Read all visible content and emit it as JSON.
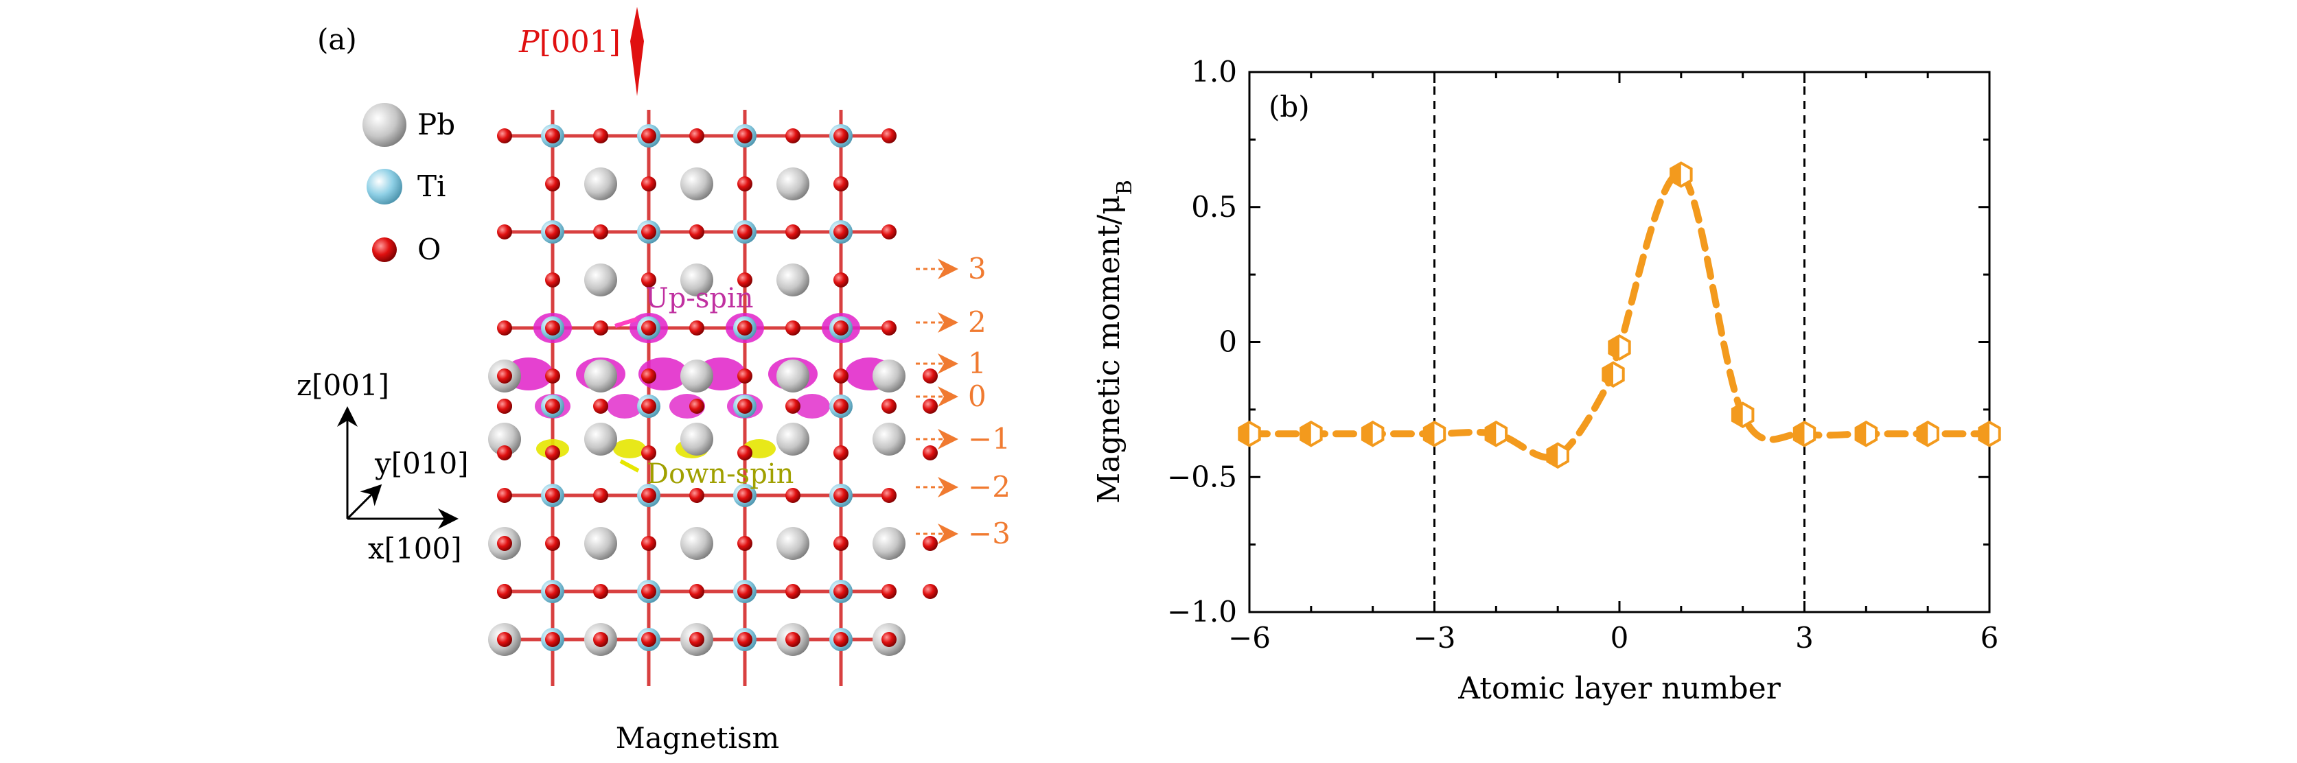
{
  "panel_a": {
    "label": "(a)",
    "polarization": {
      "symbol": "P",
      "direction": "[001]"
    },
    "legend": [
      "Pb",
      "Ti",
      "O"
    ],
    "axes": {
      "z": "z[001]",
      "y": "y[010]",
      "x": "x[100]"
    },
    "spin_labels": {
      "up": "Up-spin",
      "down": "Down-spin"
    },
    "layer_labels": [
      "3",
      "2",
      "1",
      "0",
      "−1",
      "−2",
      "−3"
    ],
    "caption": "Magnetism",
    "colors": {
      "pb": "#c8c8c8",
      "ti": "#8fd0e6",
      "o": "#e01010",
      "bond": "#d84040",
      "up_spin": "#e020c8",
      "down_spin": "#e6e600",
      "arrow": "#f07a30",
      "p_arrow": "#e01010"
    }
  },
  "chart_data": {
    "type": "line",
    "panel_label": "(b)",
    "title": "",
    "xlabel": "Atomic layer number",
    "ylabel": "Magnetic moment/μB",
    "ylabel_main": "Magnetic moment/μ",
    "ylabel_sub": "B",
    "xlim": [
      -6,
      6
    ],
    "ylim": [
      -1.0,
      1.0
    ],
    "xticks": [
      "−6",
      "−3",
      "0",
      "3",
      "6"
    ],
    "xtick_values": [
      -6,
      -3,
      0,
      3,
      6
    ],
    "yticks": [
      "1.0",
      "0.5",
      "0",
      "−0.5",
      "−1.0"
    ],
    "ytick_values": [
      1.0,
      0.5,
      0,
      -0.5,
      -1.0
    ],
    "vlines": [
      -3,
      3
    ],
    "series": [
      {
        "name": "Magnetic moment",
        "color": "#f39a1d",
        "marker": "hexagon-half",
        "x": [
          -6,
          -5,
          -4,
          -3,
          -2,
          -1,
          -0.1,
          0,
          1,
          2,
          3,
          4,
          5,
          6
        ],
        "y": [
          -0.34,
          -0.34,
          -0.34,
          -0.34,
          -0.34,
          -0.42,
          -0.12,
          -0.02,
          0.62,
          -0.27,
          -0.34,
          -0.34,
          -0.34,
          -0.34
        ]
      }
    ],
    "grid": false
  }
}
